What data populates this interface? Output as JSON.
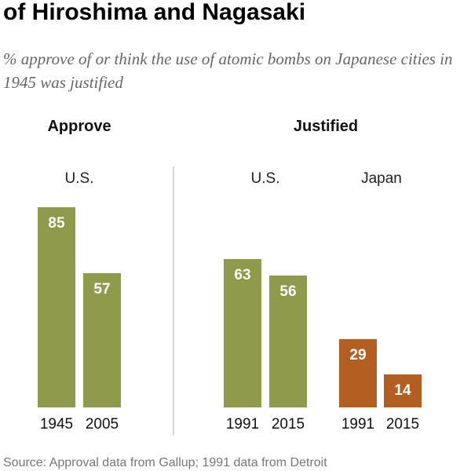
{
  "title": "of Hiroshima and Nagasaki",
  "subtitle": "% approve of or think the use of atomic bombs on Japanese cities in 1945 was justified",
  "source": "Source: Approval data from Gallup; 1991 data from Detroit",
  "colors": {
    "us": "#8f9a4a",
    "japan": "#b35f22",
    "divider": "#cccccc",
    "bar_label": "#ffffff"
  },
  "chart_data": [
    {
      "type": "bar",
      "title": "Approve",
      "group": "U.S.",
      "categories": [
        "1945",
        "2005"
      ],
      "values": [
        85,
        57
      ]
    },
    {
      "type": "bar",
      "title": "Justified",
      "groups": [
        {
          "group": "U.S.",
          "categories": [
            "1991",
            "2015"
          ],
          "values": [
            63,
            56
          ]
        },
        {
          "group": "Japan",
          "categories": [
            "1991",
            "2015"
          ],
          "values": [
            29,
            14
          ]
        }
      ]
    }
  ]
}
